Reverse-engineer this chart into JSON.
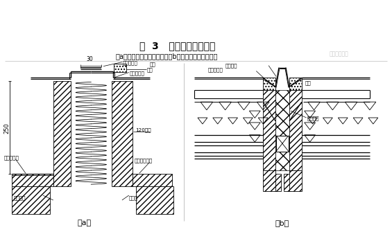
{
  "title": "图  3   屋面伸缩缝的构造",
  "subtitle": "（a）柔性屋面伸缩缝构造；（b）刚性屋面伸缩缝构造",
  "label_a": "（a）",
  "label_b": "（b）",
  "watermark": "筑龙结构设计",
  "bg_color": "#ffffff",
  "lc": "#000000"
}
